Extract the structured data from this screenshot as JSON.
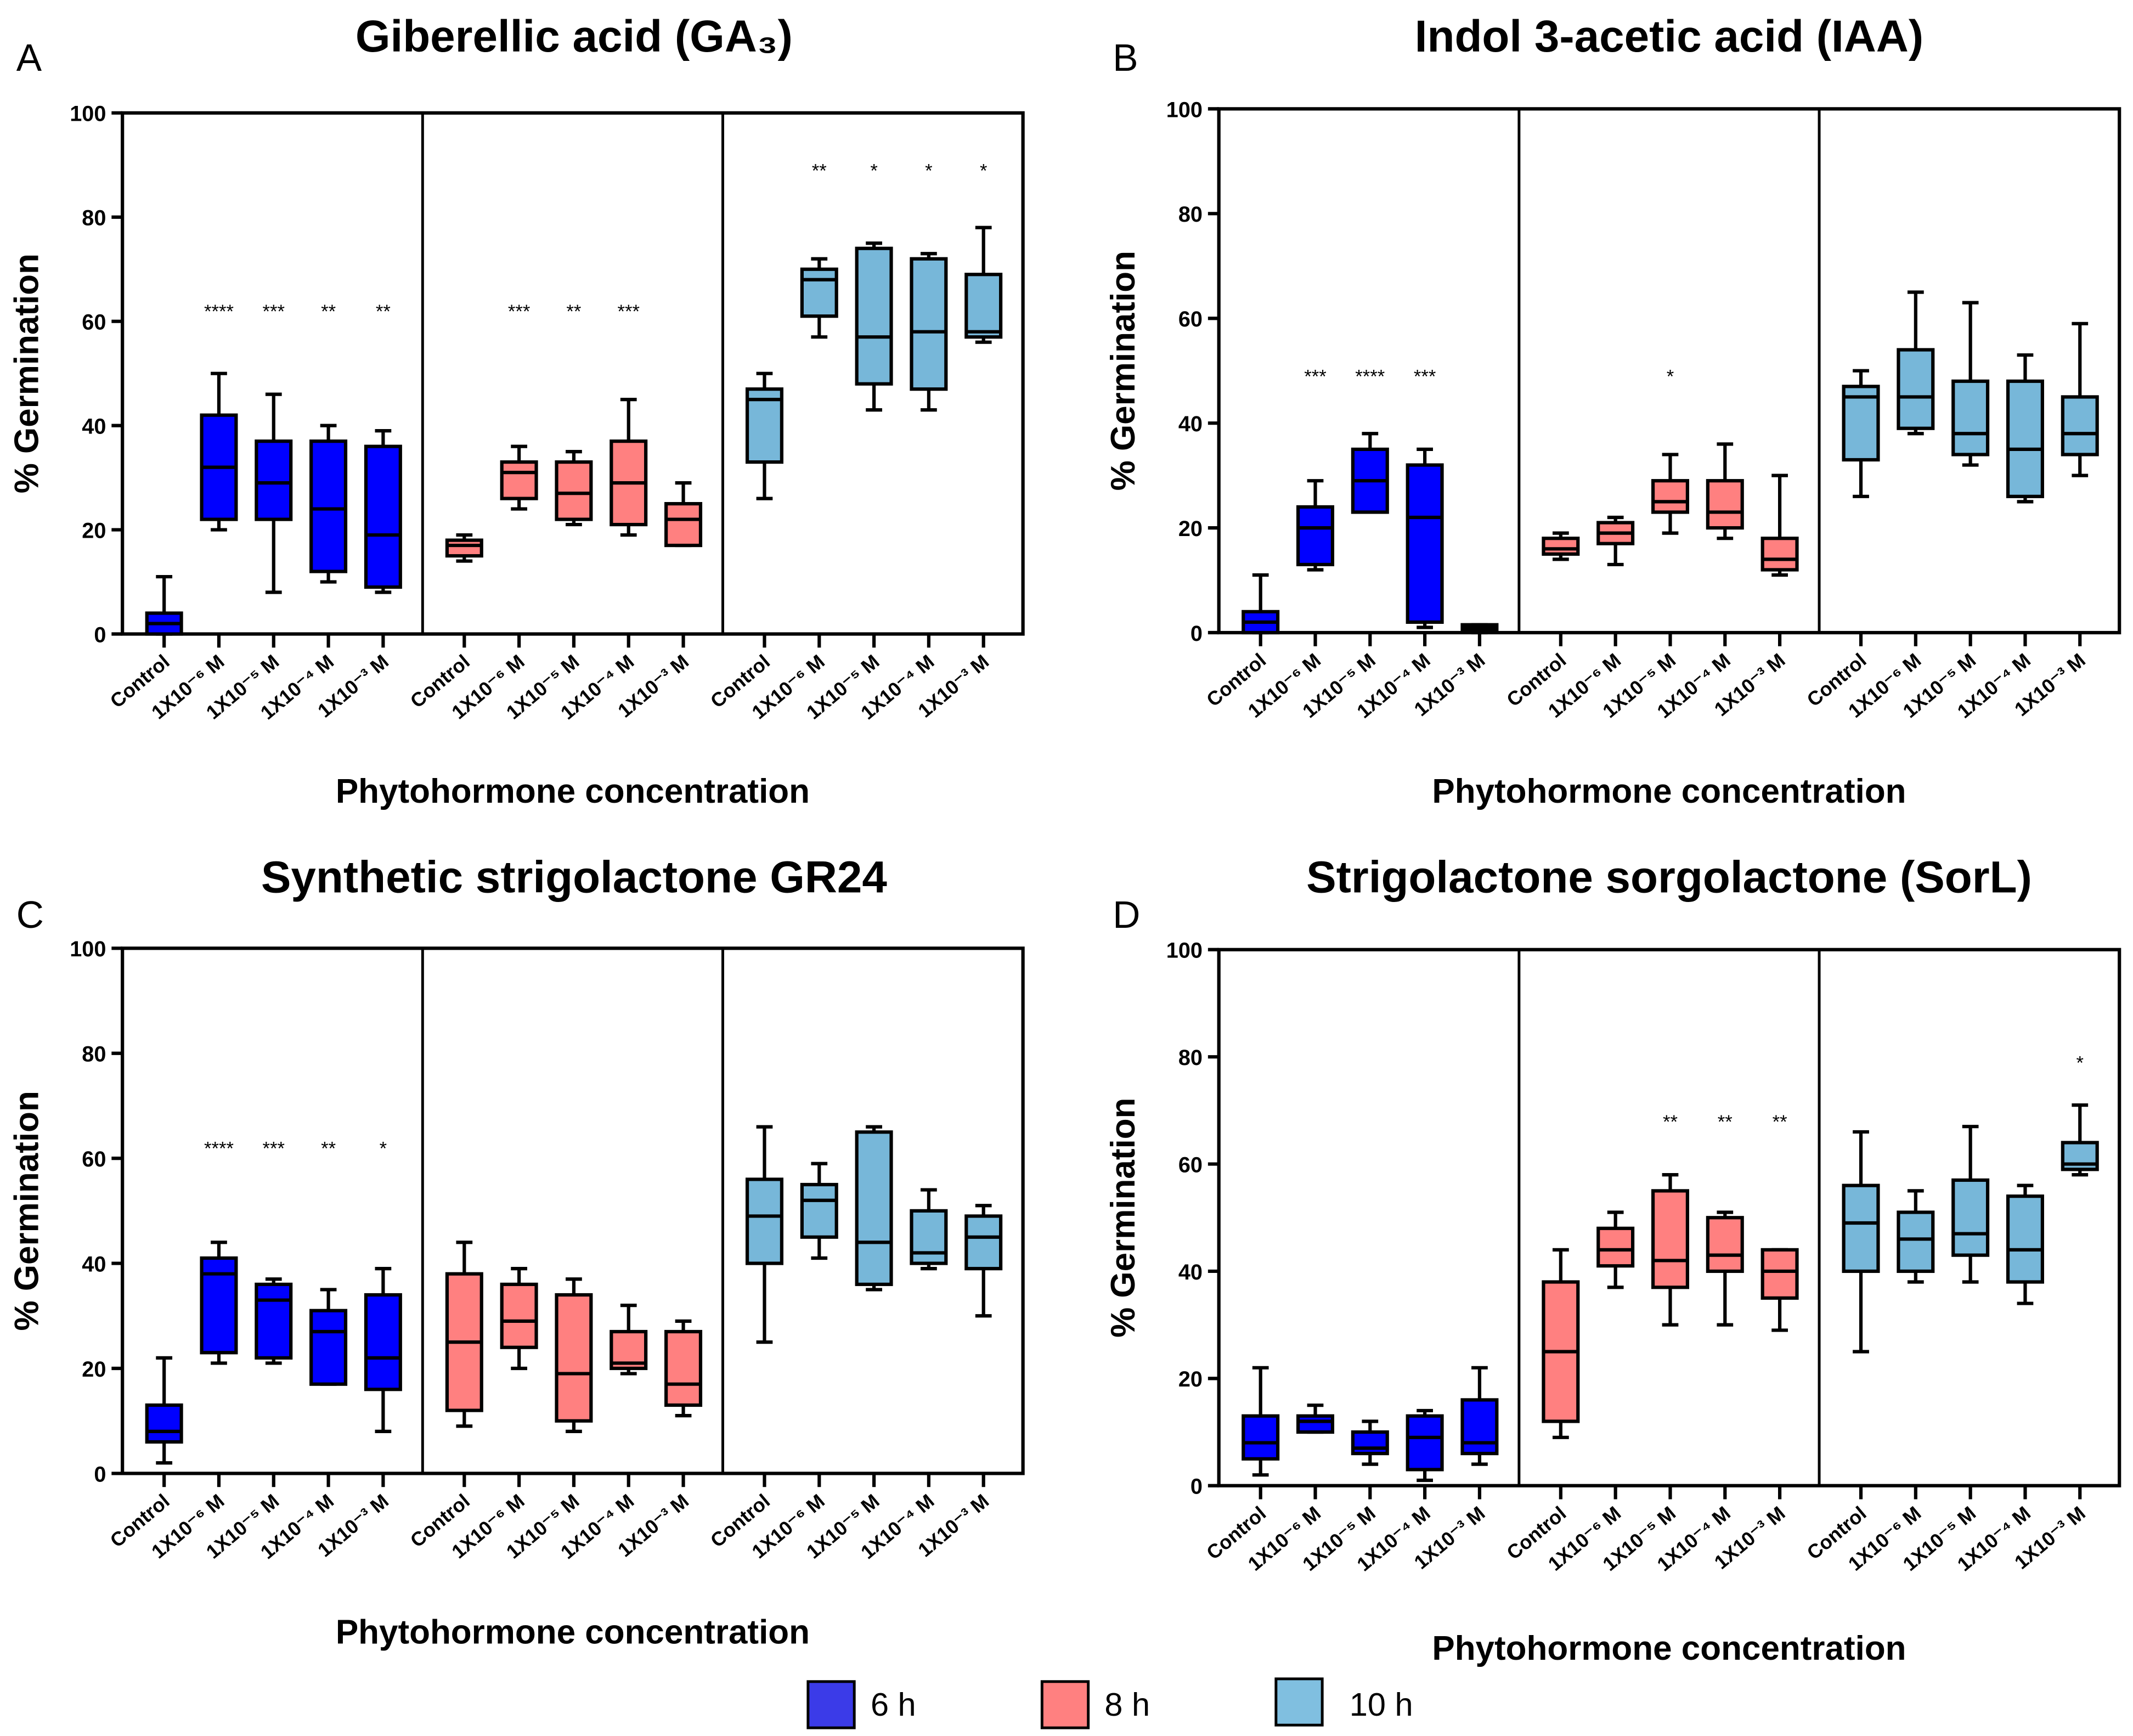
{
  "legend": [
    {
      "label": "6 h",
      "color": "#3b3be8"
    },
    {
      "label": "8 h",
      "color": "#ff8080"
    },
    {
      "label": "10 h",
      "color": "#80bfe0"
    }
  ],
  "series_colors": {
    "6 h": "#0000ff",
    "8 h": "#ff8080",
    "10 h": "#77b7d9"
  },
  "chart_data": [
    {
      "type": "box",
      "letter": "A",
      "title": "Giberellic acid (GA₃)",
      "xlabel": "Phytohormone concentration",
      "ylabel": "% Germination",
      "ylim": [
        0,
        100
      ],
      "yticks": [
        0,
        20,
        40,
        60,
        80,
        100
      ],
      "categories": [
        "Control",
        "1X10⁻⁶ M",
        "1X10⁻⁵ M",
        "1X10⁻⁴ M",
        "1X10⁻³ M"
      ],
      "box_order": [
        "min",
        "q1",
        "median",
        "q3",
        "max"
      ],
      "groups": [
        {
          "name": "6 h",
          "boxes": [
            [
              0,
              0,
              2,
              4,
              11
            ],
            [
              20,
              22,
              32,
              42,
              50
            ],
            [
              8,
              22,
              29,
              37,
              46
            ],
            [
              10,
              12,
              24,
              37,
              40
            ],
            [
              8,
              9,
              19,
              36,
              39
            ]
          ],
          "stars": [
            "",
            "****",
            "***",
            "**",
            "**"
          ],
          "star_y": 62
        },
        {
          "name": "8 h",
          "boxes": [
            [
              14,
              15,
              17,
              18,
              19
            ],
            [
              24,
              26,
              31,
              33,
              36
            ],
            [
              21,
              22,
              27,
              33,
              35
            ],
            [
              19,
              21,
              29,
              37,
              45
            ],
            [
              17,
              17,
              22,
              25,
              29
            ]
          ],
          "stars": [
            "",
            "***",
            "**",
            "***",
            ""
          ],
          "star_y": 62
        },
        {
          "name": "10 h",
          "boxes": [
            [
              26,
              33,
              45,
              47,
              50
            ],
            [
              57,
              61,
              68,
              70,
              72
            ],
            [
              43,
              48,
              57,
              74,
              75
            ],
            [
              43,
              47,
              58,
              72,
              73
            ],
            [
              56,
              57,
              58,
              69,
              78
            ]
          ],
          "stars": [
            "",
            "**",
            "*",
            "*",
            "*"
          ],
          "star_y": 89
        }
      ]
    },
    {
      "type": "box",
      "letter": "B",
      "title": "Indol 3-acetic acid (IAA)",
      "xlabel": "Phytohormone concentration",
      "ylabel": "% Germination",
      "ylim": [
        0,
        100
      ],
      "yticks": [
        0,
        20,
        40,
        60,
        80,
        100
      ],
      "categories": [
        "Control",
        "1X10⁻⁶ M",
        "1X10⁻⁵ M",
        "1X10⁻⁴ M",
        "1X10⁻³ M"
      ],
      "box_order": [
        "min",
        "q1",
        "median",
        "q3",
        "max"
      ],
      "groups": [
        {
          "name": "6 h",
          "boxes": [
            [
              0,
              0,
              2,
              4,
              11
            ],
            [
              12,
              13,
              20,
              24,
              29
            ],
            [
              23,
              23,
              29,
              35,
              38
            ],
            [
              1,
              2,
              22,
              32,
              35
            ],
            [
              0,
              0.5,
              1,
              1.5,
              1.5
            ]
          ],
          "stars": [
            "",
            "***",
            "****",
            "***",
            ""
          ],
          "star_y": 49
        },
        {
          "name": "8 h",
          "boxes": [
            [
              14,
              15,
              16,
              18,
              19
            ],
            [
              13,
              17,
              19,
              21,
              22
            ],
            [
              19,
              23,
              25,
              29,
              34
            ],
            [
              18,
              20,
              23,
              29,
              36
            ],
            [
              11,
              12,
              14,
              18,
              30
            ]
          ],
          "stars": [
            "",
            "",
            "*",
            "",
            ""
          ],
          "star_y": 49
        },
        {
          "name": "10 h",
          "boxes": [
            [
              26,
              33,
              45,
              47,
              50
            ],
            [
              38,
              39,
              45,
              54,
              65
            ],
            [
              32,
              34,
              38,
              48,
              63
            ],
            [
              25,
              26,
              35,
              48,
              53
            ],
            [
              30,
              34,
              38,
              45,
              59
            ]
          ],
          "stars": [
            "",
            "",
            "",
            "",
            ""
          ],
          "star_y": 0
        }
      ]
    },
    {
      "type": "box",
      "letter": "C",
      "title": "Synthetic strigolactone GR24",
      "xlabel": "Phytohormone concentration",
      "ylabel": "% Germination",
      "ylim": [
        0,
        100
      ],
      "yticks": [
        0,
        20,
        40,
        60,
        80,
        100
      ],
      "categories": [
        "Control",
        "1X10⁻⁶ M",
        "1X10⁻⁵ M",
        "1X10⁻⁴ M",
        "1X10⁻³ M"
      ],
      "box_order": [
        "min",
        "q1",
        "median",
        "q3",
        "max"
      ],
      "groups": [
        {
          "name": "6 h",
          "boxes": [
            [
              2,
              6,
              8,
              13,
              22
            ],
            [
              21,
              23,
              38,
              41,
              44
            ],
            [
              21,
              22,
              33,
              36,
              37
            ],
            [
              17,
              17,
              27,
              31,
              35
            ],
            [
              8,
              16,
              22,
              34,
              39
            ]
          ],
          "stars": [
            "",
            "****",
            "***",
            "**",
            "*"
          ],
          "star_y": 62
        },
        {
          "name": "8 h",
          "boxes": [
            [
              9,
              12,
              25,
              38,
              44
            ],
            [
              20,
              24,
              29,
              36,
              39
            ],
            [
              8,
              10,
              19,
              34,
              37
            ],
            [
              19,
              20,
              21,
              27,
              32
            ],
            [
              11,
              13,
              17,
              27,
              29
            ]
          ],
          "stars": [
            "",
            "",
            "",
            "",
            ""
          ],
          "star_y": 0
        },
        {
          "name": "10 h",
          "boxes": [
            [
              25,
              40,
              49,
              56,
              66
            ],
            [
              41,
              45,
              52,
              55,
              59
            ],
            [
              35,
              36,
              44,
              65,
              66
            ],
            [
              39,
              40,
              42,
              50,
              54
            ],
            [
              30,
              39,
              45,
              49,
              51
            ]
          ],
          "stars": [
            "",
            "",
            "",
            "",
            ""
          ],
          "star_y": 0
        }
      ]
    },
    {
      "type": "box",
      "letter": "D",
      "title": "Strigolactone sorgolactone (SorL)",
      "xlabel": "Phytohormone concentration",
      "ylabel": "% Germination",
      "ylim": [
        0,
        100
      ],
      "yticks": [
        0,
        20,
        40,
        60,
        80,
        100
      ],
      "categories": [
        "Control",
        "1X10⁻⁶ M",
        "1X10⁻⁵ M",
        "1X10⁻⁴ M",
        "1X10⁻³ M"
      ],
      "box_order": [
        "min",
        "q1",
        "median",
        "q3",
        "max"
      ],
      "groups": [
        {
          "name": "6 h",
          "boxes": [
            [
              2,
              5,
              8,
              13,
              22
            ],
            [
              10,
              10,
              12,
              13,
              15
            ],
            [
              4,
              6,
              7,
              10,
              12
            ],
            [
              1,
              3,
              9,
              13,
              14
            ],
            [
              4,
              6,
              8,
              16,
              22
            ]
          ],
          "stars": [
            "",
            "",
            "",
            "",
            ""
          ],
          "star_y": 0
        },
        {
          "name": "8 h",
          "boxes": [
            [
              9,
              12,
              25,
              38,
              44
            ],
            [
              37,
              41,
              44,
              48,
              51
            ],
            [
              30,
              37,
              42,
              55,
              58
            ],
            [
              30,
              40,
              43,
              50,
              51
            ],
            [
              29,
              35,
              40,
              44,
              44
            ]
          ],
          "stars": [
            "",
            "",
            "**",
            "**",
            "**"
          ],
          "star_y": 68
        },
        {
          "name": "10 h",
          "boxes": [
            [
              25,
              40,
              49,
              56,
              66
            ],
            [
              38,
              40,
              46,
              51,
              55
            ],
            [
              38,
              43,
              47,
              57,
              67
            ],
            [
              34,
              38,
              44,
              54,
              56
            ],
            [
              58,
              59,
              60,
              64,
              71
            ]
          ],
          "stars": [
            "",
            "",
            "",
            "",
            "*"
          ],
          "star_y": 79
        }
      ]
    }
  ]
}
